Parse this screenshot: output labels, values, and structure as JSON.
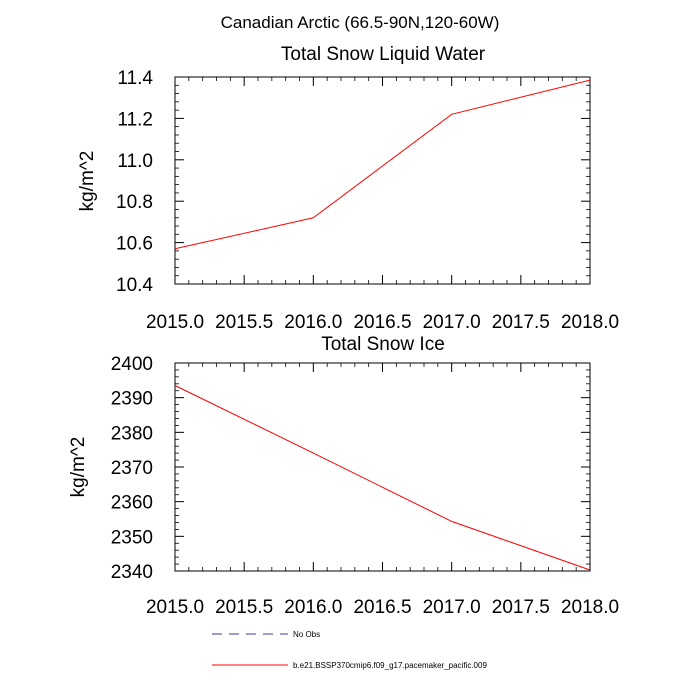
{
  "figure": {
    "title": "Canadian Arctic (66.5-90N,120-60W)"
  },
  "colors": {
    "series": "#ff0000",
    "obs": "#3a3aa0",
    "axis": "#000000"
  },
  "legend": {
    "placement": "bottom",
    "entries": [
      {
        "label": "No Obs",
        "style": "dashed",
        "color": "#3a3aa0"
      },
      {
        "label": "b.e21.BSSP370cmip6.f09_g17.pacemaker_pacific.009",
        "style": "solid",
        "color": "#ff0000"
      }
    ]
  },
  "chart_data": [
    {
      "type": "line",
      "title": "Total Snow Liquid Water",
      "xlabel": "",
      "ylabel": "kg/m^2",
      "xlim": [
        2015.0,
        2018.0
      ],
      "ylim": [
        10.4,
        11.4
      ],
      "xticks": [
        "2015.0",
        "2015.5",
        "2016.0",
        "2016.5",
        "2017.0",
        "2017.5",
        "2018.0"
      ],
      "yticks": [
        "10.4",
        "10.6",
        "10.8",
        "11.0",
        "11.2",
        "11.4"
      ],
      "grid": false,
      "series": [
        {
          "x": [
            2015.0,
            2016.0,
            2017.0,
            2018.0
          ],
          "values": [
            10.57,
            10.72,
            11.22,
            11.385
          ],
          "color": "#ff0000"
        }
      ]
    },
    {
      "type": "line",
      "title": "Total Snow Ice",
      "xlabel": "",
      "ylabel": "kg/m^2",
      "xlim": [
        2015.0,
        2018.0
      ],
      "ylim": [
        2340,
        2400
      ],
      "xticks": [
        "2015.0",
        "2015.5",
        "2016.0",
        "2016.5",
        "2017.0",
        "2017.5",
        "2018.0"
      ],
      "yticks": [
        "2340",
        "2350",
        "2360",
        "2370",
        "2380",
        "2390",
        "2400"
      ],
      "grid": false,
      "series": [
        {
          "x": [
            2015.0,
            2016.0,
            2017.0,
            2018.0
          ],
          "values": [
            2393.5,
            2374.0,
            2354.3,
            2340.3
          ],
          "color": "#ff0000"
        }
      ]
    }
  ]
}
